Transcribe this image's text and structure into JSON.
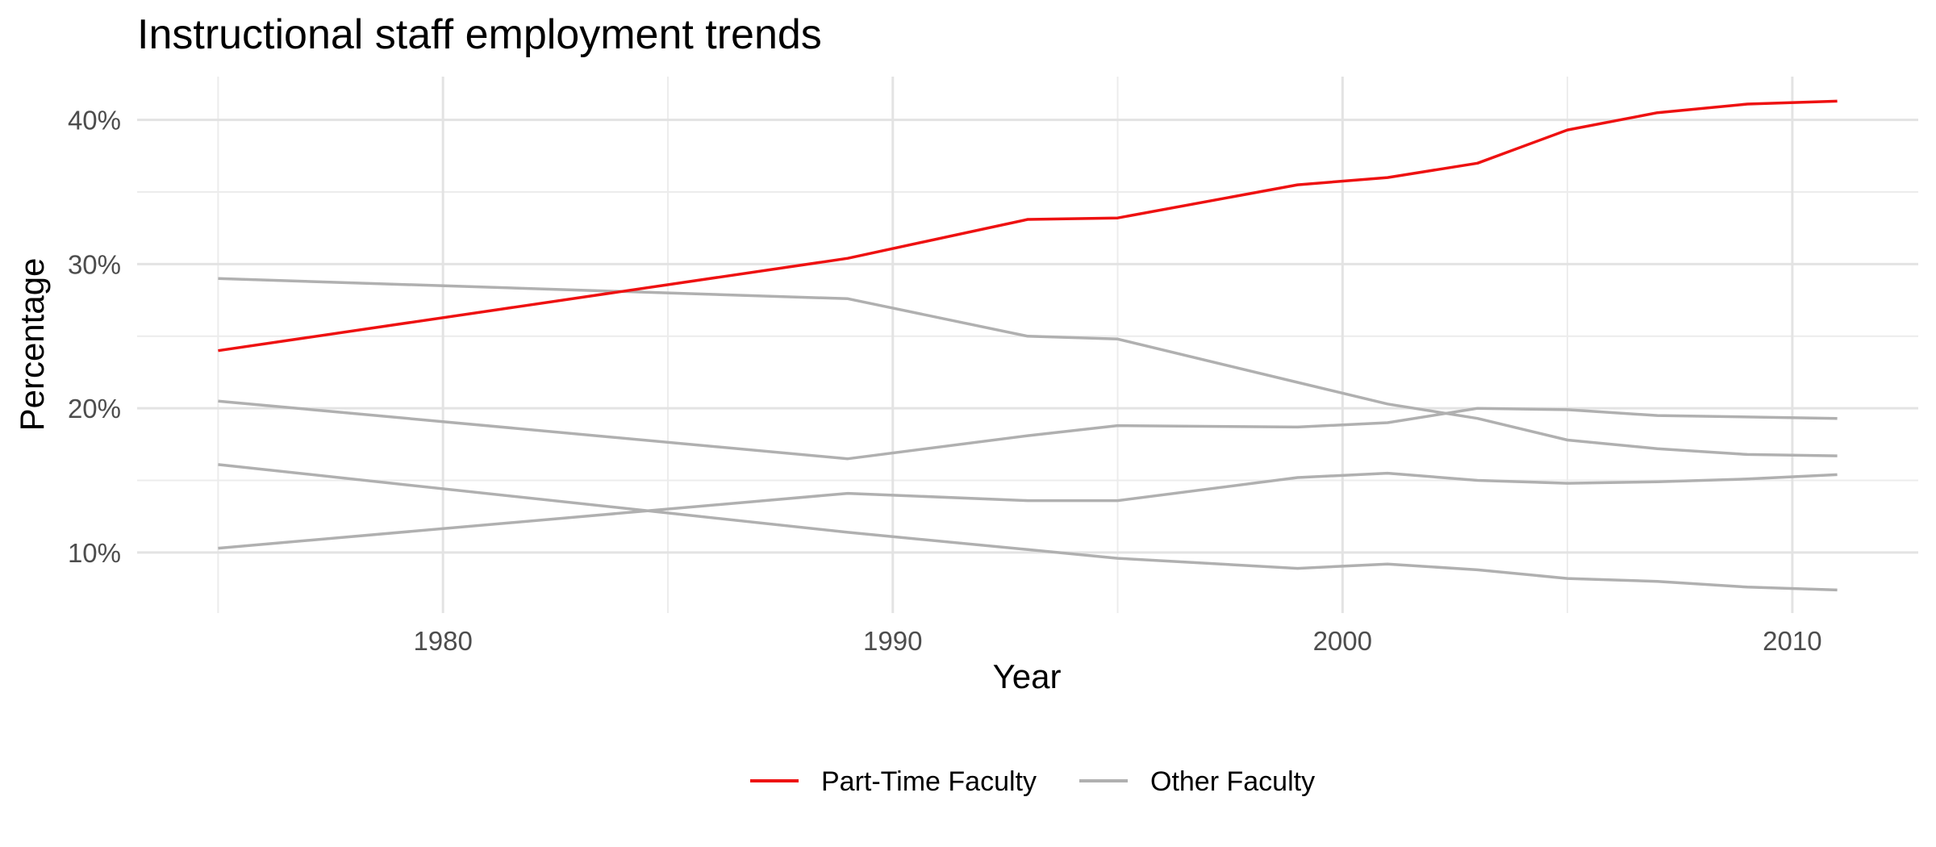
{
  "chart_data": {
    "type": "line",
    "title": "Instructional staff employment trends",
    "xlabel": "Year",
    "ylabel": "Percentage",
    "xlim": [
      1973.2,
      2012.8
    ],
    "ylim": [
      5.8,
      43.0
    ],
    "x_ticks": [
      1980,
      1990,
      2000,
      2010
    ],
    "x_tick_labels": [
      "1980",
      "1990",
      "2000",
      "2010"
    ],
    "y_ticks": [
      10,
      20,
      30,
      40
    ],
    "y_tick_labels": [
      "10%",
      "20%",
      "30%",
      "40%"
    ],
    "grid": true,
    "legend_position": "bottom",
    "legend": [
      {
        "label": "Part-Time Faculty",
        "color": "#ee1111"
      },
      {
        "label": "Other Faculty",
        "color": "#b0b0b0"
      }
    ],
    "highlight_color": "#ee1111",
    "other_color": "#b0b0b0",
    "series": [
      {
        "highlight": true,
        "x": [
          1975,
          1989,
          1993,
          1995,
          1999,
          2001,
          2003,
          2005,
          2007,
          2009,
          2011
        ],
        "y": [
          24.0,
          30.4,
          33.1,
          33.2,
          35.5,
          36.0,
          37.0,
          39.3,
          40.5,
          41.1,
          41.3
        ]
      },
      {
        "highlight": false,
        "x": [
          1975,
          1989,
          1993,
          1995,
          1999,
          2001,
          2003,
          2005,
          2007,
          2009,
          2011
        ],
        "y": [
          29.0,
          27.6,
          25.0,
          24.8,
          21.8,
          20.3,
          19.3,
          17.8,
          17.2,
          16.8,
          16.7
        ]
      },
      {
        "highlight": false,
        "x": [
          1975,
          1989,
          1993,
          1995,
          1999,
          2001,
          2003,
          2005,
          2007,
          2009,
          2011
        ],
        "y": [
          20.5,
          16.5,
          18.1,
          18.8,
          18.7,
          19.0,
          20.0,
          19.9,
          19.5,
          19.4,
          19.3
        ]
      },
      {
        "highlight": false,
        "x": [
          1975,
          1989,
          1993,
          1995,
          1999,
          2001,
          2003,
          2005,
          2007,
          2009,
          2011
        ],
        "y": [
          16.1,
          11.4,
          10.2,
          9.6,
          8.9,
          9.2,
          8.8,
          8.2,
          8.0,
          7.6,
          7.4
        ]
      },
      {
        "highlight": false,
        "x": [
          1975,
          1989,
          1993,
          1995,
          1999,
          2001,
          2003,
          2005,
          2007,
          2009,
          2011
        ],
        "y": [
          10.3,
          14.1,
          13.6,
          13.6,
          15.2,
          15.5,
          15.0,
          14.8,
          14.9,
          15.1,
          15.4
        ]
      }
    ]
  }
}
